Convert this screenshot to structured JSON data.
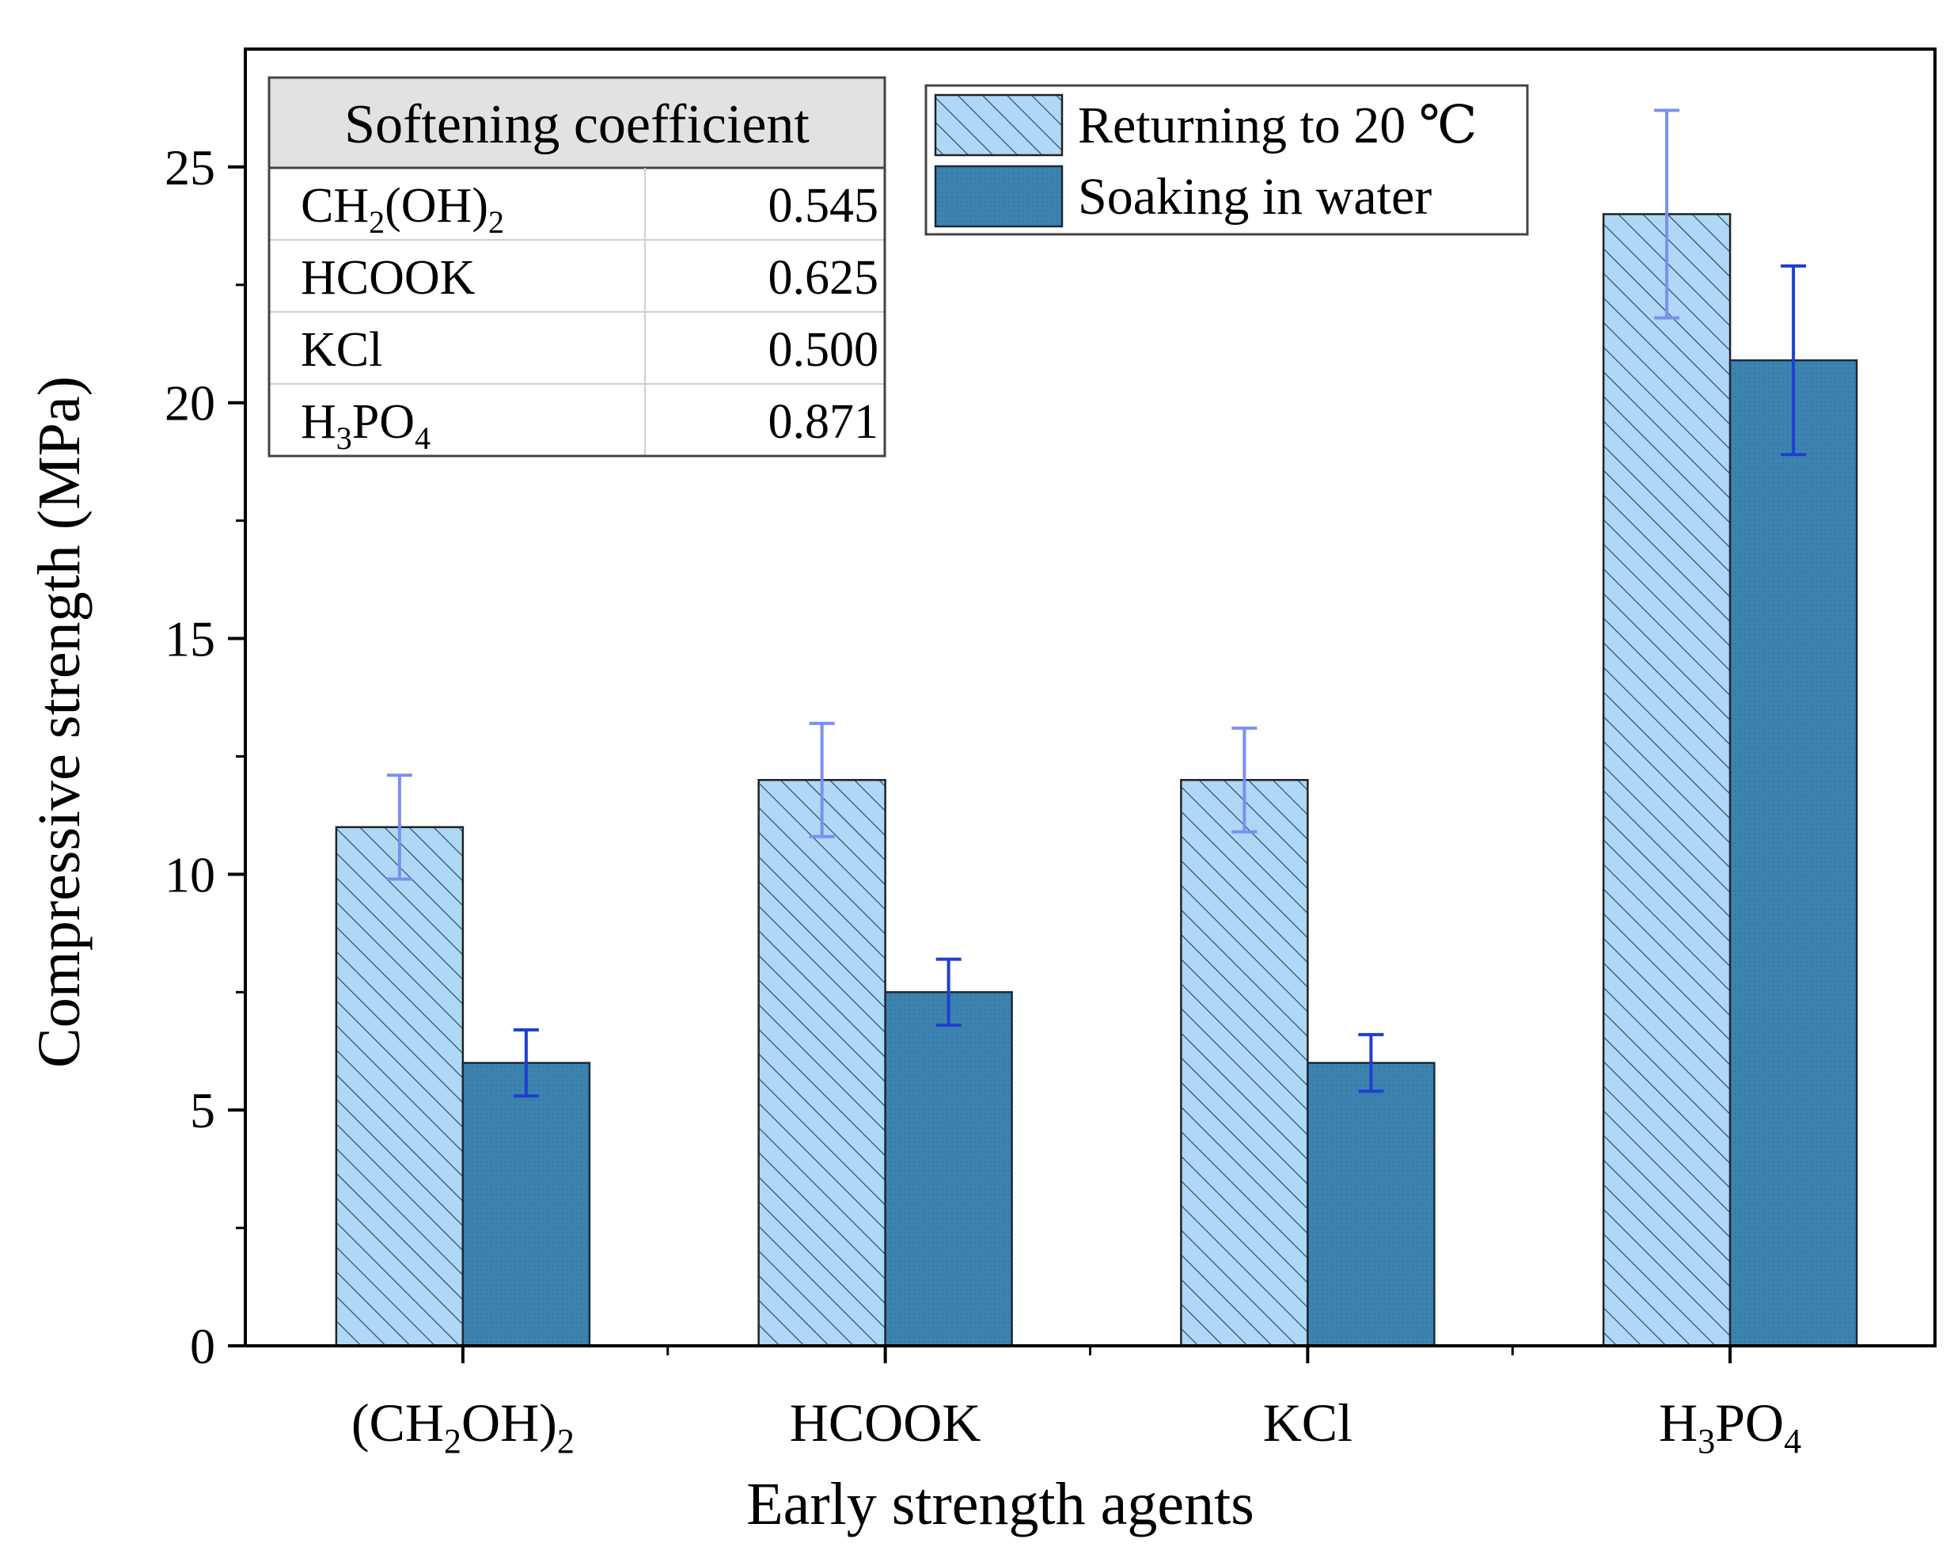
{
  "chart_data": {
    "type": "bar",
    "xlabel": "Early strength agents",
    "ylabel": "Compressive strength (MPa)",
    "ylim": [
      0,
      27.5
    ],
    "yticks": [
      0,
      5,
      10,
      15,
      20,
      25
    ],
    "categories": [
      {
        "base": "(CH",
        "sub1": "2",
        "mid": "OH)",
        "sub2": "2",
        "tail": ""
      },
      {
        "base": "HCOOK",
        "sub1": "",
        "mid": "",
        "sub2": "",
        "tail": ""
      },
      {
        "base": "KCl",
        "sub1": "",
        "mid": "",
        "sub2": "",
        "tail": ""
      },
      {
        "base": "H",
        "sub1": "3",
        "mid": "PO",
        "sub2": "4",
        "tail": ""
      }
    ],
    "series": [
      {
        "name": "Returning to 20 ℃",
        "values": [
          11.0,
          12.0,
          12.0,
          24.0
        ],
        "errors": [
          1.1,
          1.2,
          1.1,
          2.2
        ],
        "fill": "#aed8f5",
        "hatch": "#2e4a6b",
        "error_color": "#7b8ff0"
      },
      {
        "name": "Soaking in water",
        "values": [
          6.0,
          7.5,
          6.0,
          20.9
        ],
        "errors": [
          0.7,
          0.7,
          0.6,
          2.0
        ],
        "fill": "#3d83b0",
        "hatch": "",
        "error_color": "#1f3fcf"
      }
    ],
    "legend_position": "top-center",
    "inset_table": {
      "header": "Softening coefficient",
      "header_fill": "#e2e2e2",
      "rows": [
        {
          "agent": {
            "base": "CH",
            "sub1": "2",
            "mid": "(OH)",
            "sub2": "2",
            "tail": ""
          },
          "value": "0.545"
        },
        {
          "agent": {
            "base": "HCOOK",
            "sub1": "",
            "mid": "",
            "sub2": "",
            "tail": ""
          },
          "value": "0.625"
        },
        {
          "agent": {
            "base": "KCl",
            "sub1": "",
            "mid": "",
            "sub2": "",
            "tail": ""
          },
          "value": "0.500"
        },
        {
          "agent": {
            "base": "H",
            "sub1": "3",
            "mid": "PO",
            "sub2": "4",
            "tail": ""
          },
          "value": "0.871"
        }
      ]
    }
  }
}
